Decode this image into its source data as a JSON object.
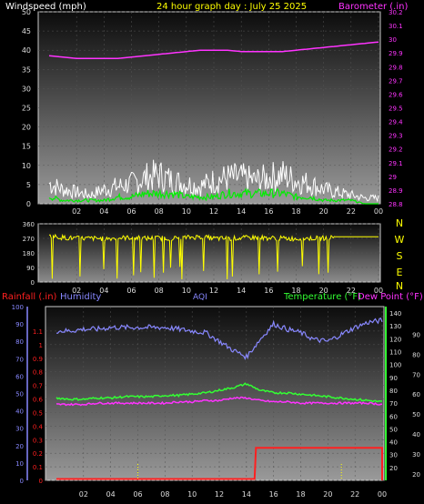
{
  "colors": {
    "title": "#ffff00",
    "wind_label": "#ffffff",
    "baro": "#ff33ff",
    "wind_avg": "#00ee00",
    "wind_gust": "#ffffff",
    "direction": "#ffff00",
    "rain": "#ff2020",
    "humidity": "#8888ff",
    "aqi": "#8888ff",
    "temp": "#33ff33",
    "dew": "#ff33ff",
    "panel_top": "#8a8a8a",
    "panel_bottom": "#0c0c0c"
  },
  "chart_data": [
    {
      "type": "line",
      "title": "24 hour graph day : July 25 2025",
      "ylabel": "Windspeed (mph)",
      "y2label": "Barometer (.in)",
      "ylim": [
        0,
        50
      ],
      "y2lim": [
        28.8,
        30.2
      ],
      "yticks": [
        "0",
        "5",
        "10",
        "15",
        "20",
        "25",
        "30",
        "35",
        "40",
        "45",
        "50"
      ],
      "y2ticks": [
        "28.8",
        "28.9",
        "29",
        "29.1",
        "29.2",
        "29.3",
        "29.4",
        "29.5",
        "29.6",
        "29.7",
        "29.8",
        "29.9",
        "30",
        "30.1",
        "30.2"
      ],
      "x": [
        0,
        1,
        2,
        3,
        4,
        5,
        6,
        7,
        8,
        9,
        10,
        11,
        12,
        13,
        14,
        15,
        16,
        17,
        18,
        19,
        20,
        21,
        22,
        23,
        24
      ],
      "xticks": [
        "02",
        "04",
        "06",
        "08",
        "10",
        "12",
        "14",
        "16",
        "18",
        "20",
        "22",
        "00"
      ],
      "series": [
        {
          "key": "baro",
          "axis": "y2",
          "values": [
            29.88,
            29.87,
            29.86,
            29.86,
            29.86,
            29.86,
            29.87,
            29.88,
            29.89,
            29.9,
            29.91,
            29.92,
            29.92,
            29.92,
            29.91,
            29.91,
            29.91,
            29.91,
            29.92,
            29.93,
            29.94,
            29.95,
            29.96,
            29.97,
            29.98
          ]
        },
        {
          "key": "wind_gust",
          "axis": "y",
          "values": [
            7,
            5,
            4,
            3,
            5,
            6,
            7,
            9,
            10,
            8,
            7,
            6,
            8,
            9,
            9,
            8,
            9,
            10,
            8,
            7,
            5,
            4,
            3,
            2,
            2
          ]
        },
        {
          "key": "wind_avg",
          "axis": "y",
          "values": [
            2,
            1,
            1,
            1,
            1,
            2,
            2,
            3,
            3,
            3,
            2,
            2,
            2,
            3,
            3,
            3,
            3,
            3,
            2,
            2,
            1,
            1,
            1,
            0,
            0
          ]
        }
      ]
    },
    {
      "type": "line",
      "ylabel_right": [
        "N",
        "W",
        "S",
        "E",
        "N"
      ],
      "ylim": [
        0,
        360
      ],
      "yticks": [
        "0",
        "90",
        "180",
        "270",
        "360"
      ],
      "x": [
        0,
        1,
        2,
        3,
        4,
        5,
        6,
        7,
        8,
        9,
        10,
        11,
        12,
        13,
        14,
        15,
        16,
        17,
        18,
        19,
        20,
        21,
        22,
        23,
        24
      ],
      "xticks": [
        "02",
        "04",
        "06",
        "08",
        "10",
        "12",
        "14",
        "16",
        "18",
        "20",
        "22",
        "00"
      ],
      "series": [
        {
          "key": "direction",
          "axis": "y",
          "values": [
            285,
            275,
            270,
            270,
            268,
            272,
            275,
            270,
            272,
            270,
            275,
            280,
            270,
            268,
            272,
            276,
            272,
            270,
            268,
            270,
            272,
            275,
            282,
            280,
            280
          ]
        }
      ]
    },
    {
      "type": "line",
      "legend": {
        "rain": "Rainfall (.in)",
        "humidity": "Humidity",
        "aqi": "AQI",
        "temp": "Temperature (°F)",
        "dew": "Dew Point (°F)"
      },
      "rain_ylim": [
        0,
        1.2
      ],
      "rain_ticks": [
        "0",
        "0.1",
        "0.2",
        "0.3",
        "0.4",
        "0.5",
        "0.6",
        "0.7",
        "0.8",
        "0.9",
        "1",
        "1.1"
      ],
      "hum_ylim": [
        0,
        100
      ],
      "hum_ticks": [
        "0",
        "10",
        "20",
        "30",
        "40",
        "50",
        "60",
        "70",
        "80",
        "90",
        "100"
      ],
      "temp_ylim": [
        10,
        145
      ],
      "temp_ticks": [
        "20",
        "30",
        "40",
        "50",
        "60",
        "70",
        "80",
        "90",
        "100",
        "110",
        "120",
        "130",
        "140"
      ],
      "right_ticks": [
        "20",
        "30",
        "40",
        "50",
        "60",
        "70",
        "80",
        "90"
      ],
      "x": [
        0,
        1,
        2,
        3,
        4,
        5,
        6,
        7,
        8,
        9,
        10,
        11,
        12,
        13,
        14,
        15,
        16,
        17,
        18,
        19,
        20,
        21,
        22,
        23,
        24
      ],
      "xticks": [
        "02",
        "04",
        "06",
        "08",
        "10",
        "12",
        "14",
        "16",
        "18",
        "20",
        "22",
        "00"
      ],
      "series": [
        {
          "key": "humidity",
          "axis": "hum",
          "values": [
            86,
            86,
            87,
            87,
            88,
            88,
            88,
            88,
            88,
            87,
            86,
            85,
            80,
            75,
            71,
            81,
            90,
            87,
            85,
            81,
            80,
            84,
            88,
            91,
            92
          ]
        },
        {
          "key": "temp",
          "axis": "temp",
          "values": [
            74,
            73,
            73,
            74,
            74,
            75,
            75,
            75,
            76,
            76,
            77,
            78,
            80,
            82,
            85,
            80,
            78,
            78,
            77,
            76,
            75,
            74,
            73,
            72,
            71
          ]
        },
        {
          "key": "dew",
          "axis": "temp",
          "values": [
            69,
            69,
            69,
            70,
            70,
            70,
            70,
            70,
            70,
            71,
            71,
            72,
            72,
            74,
            74,
            72,
            71,
            71,
            70,
            70,
            70,
            70,
            70,
            70,
            69
          ]
        },
        {
          "key": "rain",
          "axis": "rain",
          "values": [
            0.01,
            0.01,
            0.01,
            0.01,
            0.01,
            0.01,
            0.01,
            0.01,
            0.01,
            0.01,
            0.01,
            0.01,
            0.01,
            0.01,
            0.01,
            0.24,
            0.24,
            0.24,
            0.24,
            0.24,
            0.24,
            0.24,
            0.24,
            0.24,
            0.24
          ]
        }
      ]
    }
  ]
}
